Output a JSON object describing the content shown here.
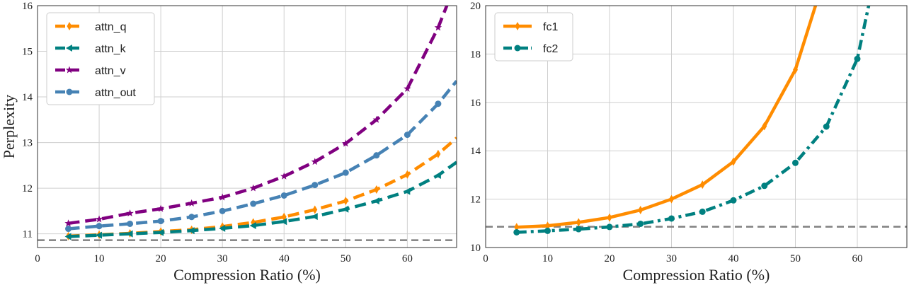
{
  "chart_data": [
    {
      "type": "line",
      "xlabel": "Compression Ratio (%)",
      "ylabel": "Perplexity",
      "xlim": [
        0,
        68
      ],
      "ylim": [
        10.7,
        16
      ],
      "xticks": [
        0,
        10,
        20,
        30,
        40,
        50,
        60
      ],
      "yticks": [
        11,
        12,
        13,
        14,
        15,
        16
      ],
      "grid": true,
      "legend_position": "top-left",
      "reference_line": 10.86,
      "series": [
        {
          "name": "attn_q",
          "color": "#ff8c00",
          "dash": "dashed",
          "marker": "thin-diamond",
          "x": [
            5,
            10,
            15,
            20,
            25,
            30,
            35,
            40,
            45,
            50,
            55,
            60,
            65,
            68
          ],
          "y": [
            10.95,
            10.98,
            11.01,
            11.05,
            11.09,
            11.16,
            11.25,
            11.37,
            11.53,
            11.72,
            11.97,
            12.3,
            12.75,
            13.1
          ]
        },
        {
          "name": "attn_k",
          "color": "#008080",
          "dash": "dashed",
          "marker": "triangle-left",
          "x": [
            5,
            10,
            15,
            20,
            25,
            30,
            35,
            40,
            45,
            50,
            55,
            60,
            65,
            68
          ],
          "y": [
            10.94,
            10.97,
            11.0,
            11.03,
            11.07,
            11.12,
            11.18,
            11.27,
            11.38,
            11.54,
            11.72,
            11.93,
            12.28,
            12.57
          ]
        },
        {
          "name": "attn_v",
          "color": "#800080",
          "dash": "dashed",
          "marker": "star",
          "x": [
            5,
            10,
            15,
            20,
            25,
            30,
            35,
            40,
            45,
            50,
            55,
            60,
            65,
            67
          ],
          "y": [
            11.23,
            11.32,
            11.45,
            11.55,
            11.67,
            11.8,
            12.0,
            12.26,
            12.58,
            12.98,
            13.5,
            14.18,
            15.52,
            16.2
          ]
        },
        {
          "name": "attn_out",
          "color": "#4682b4",
          "dash": "dashed",
          "marker": "circle",
          "x": [
            5,
            10,
            15,
            20,
            25,
            30,
            35,
            40,
            45,
            50,
            55,
            60,
            65,
            68
          ],
          "y": [
            11.11,
            11.17,
            11.22,
            11.28,
            11.37,
            11.5,
            11.66,
            11.84,
            12.07,
            12.34,
            12.72,
            13.17,
            13.85,
            14.35
          ]
        }
      ]
    },
    {
      "type": "line",
      "xlabel": "Compression Ratio (%)",
      "ylabel": "",
      "xlim": [
        0,
        68
      ],
      "ylim": [
        10,
        20
      ],
      "xticks": [
        0,
        10,
        20,
        30,
        40,
        50,
        60
      ],
      "yticks": [
        10,
        12,
        14,
        16,
        18,
        20
      ],
      "grid": true,
      "legend_position": "top-left",
      "reference_line": 10.86,
      "series": [
        {
          "name": "fc1",
          "color": "#ff8c00",
          "dash": "solid",
          "marker": "thin-diamond",
          "x": [
            5,
            10,
            15,
            20,
            25,
            30,
            35,
            40,
            45,
            50,
            53.5
          ],
          "y": [
            10.84,
            10.9,
            11.04,
            11.24,
            11.55,
            12.0,
            12.6,
            13.55,
            15.02,
            17.35,
            20.2
          ]
        },
        {
          "name": "fc2",
          "color": "#008080",
          "dash": "dashdot",
          "marker": "circle",
          "x": [
            5,
            10,
            15,
            20,
            25,
            30,
            35,
            40,
            45,
            50,
            55,
            60,
            62
          ],
          "y": [
            10.63,
            10.69,
            10.76,
            10.85,
            10.98,
            11.2,
            11.48,
            11.95,
            12.55,
            13.5,
            15.0,
            17.8,
            20.2
          ]
        }
      ]
    }
  ]
}
